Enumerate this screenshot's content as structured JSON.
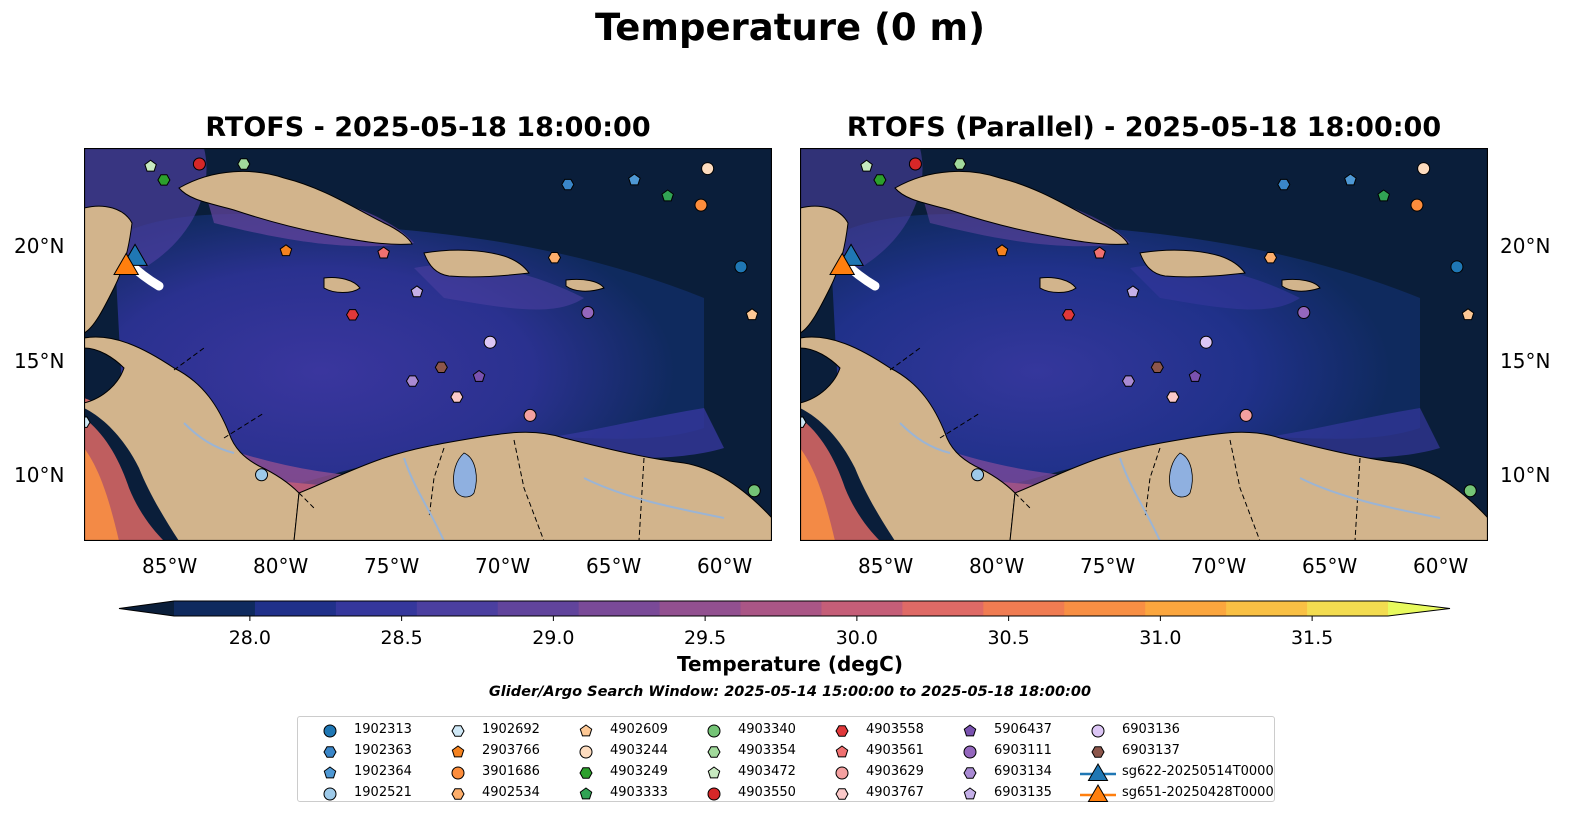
{
  "figure": {
    "suptitle": "Temperature (0 m)",
    "panels": [
      {
        "title": "RTOFS - 2025-05-18 18:00:00"
      },
      {
        "title": "RTOFS (Parallel) - 2025-05-18 18:00:00"
      }
    ],
    "lon_ticks": [
      "85°W",
      "80°W",
      "75°W",
      "70°W",
      "65°W",
      "60°W"
    ],
    "lat_ticks": [
      "20°N",
      "15°N",
      "10°N"
    ],
    "map_extent": {
      "lon": [
        -89,
        -58
      ],
      "lat": [
        7,
        24.2
      ]
    },
    "colorbar": {
      "label": "Temperature (degC)",
      "ticks": [
        "28.0",
        "28.5",
        "29.0",
        "29.5",
        "30.0",
        "30.5",
        "31.0",
        "31.5"
      ],
      "range": [
        27.75,
        31.75
      ],
      "colors": [
        "#0a1e3a",
        "#0f2a5e",
        "#20318a",
        "#35379c",
        "#4b3fa0",
        "#61449c",
        "#7a4a98",
        "#925090",
        "#aa5686",
        "#c55e78",
        "#df6a66",
        "#f07c52",
        "#f88f44",
        "#fba63e",
        "#f9c044",
        "#f3dc50",
        "#e8fa5e"
      ]
    },
    "search_window": "Glider/Argo Search Window: 2025-05-14 15:00:00 to 2025-05-18 18:00:00",
    "legend": [
      {
        "label": "1902313",
        "marker": "circle",
        "color": "#1f77b4"
      },
      {
        "label": "1902363",
        "marker": "hexagon",
        "color": "#3a86c8"
      },
      {
        "label": "1902364",
        "marker": "pentagon",
        "color": "#4e98d4"
      },
      {
        "label": "1902521",
        "marker": "circle",
        "color": "#9ecae9"
      },
      {
        "label": "1902692",
        "marker": "hexagon",
        "color": "#cfe8f6"
      },
      {
        "label": "2903766",
        "marker": "pentagon",
        "color": "#f5821f"
      },
      {
        "label": "3901686",
        "marker": "circle",
        "color": "#fd8d3c"
      },
      {
        "label": "4902534",
        "marker": "hexagon",
        "color": "#fdae6b"
      },
      {
        "label": "4902609",
        "marker": "pentagon",
        "color": "#fdc895"
      },
      {
        "label": "4903244",
        "marker": "circle",
        "color": "#fddcbf"
      },
      {
        "label": "4903249",
        "marker": "hexagon",
        "color": "#2ca02c"
      },
      {
        "label": "4903333",
        "marker": "pentagon",
        "color": "#31a354"
      },
      {
        "label": "4903340",
        "marker": "circle",
        "color": "#74c476"
      },
      {
        "label": "4903354",
        "marker": "hexagon",
        "color": "#a1d99b"
      },
      {
        "label": "4903472",
        "marker": "pentagon",
        "color": "#c7e9c0"
      },
      {
        "label": "4903550",
        "marker": "circle",
        "color": "#d62728"
      },
      {
        "label": "4903558",
        "marker": "hexagon",
        "color": "#e0383a"
      },
      {
        "label": "4903561",
        "marker": "pentagon",
        "color": "#f07070"
      },
      {
        "label": "4903629",
        "marker": "circle",
        "color": "#f4a0a0"
      },
      {
        "label": "4903767",
        "marker": "hexagon",
        "color": "#fbc9c9"
      },
      {
        "label": "5906437",
        "marker": "pentagon",
        "color": "#7a52b0"
      },
      {
        "label": "6903111",
        "marker": "circle",
        "color": "#9467bd"
      },
      {
        "label": "6903134",
        "marker": "hexagon",
        "color": "#a98ad3"
      },
      {
        "label": "6903135",
        "marker": "pentagon",
        "color": "#c5b0e8"
      },
      {
        "label": "6903136",
        "marker": "circle",
        "color": "#dcc6f5"
      },
      {
        "label": "6903137",
        "marker": "hexagon",
        "color": "#8c564b"
      },
      {
        "label": "sg622-20250514T0000",
        "marker": "triangle-line",
        "color": "#1f77b4"
      },
      {
        "label": "sg651-20250428T0000",
        "marker": "triangle-line",
        "color": "#ff7f0e"
      }
    ],
    "floats_on_map": [
      {
        "label": "4903472",
        "lon": -86,
        "lat": 23.4
      },
      {
        "label": "4903550",
        "lon": -83.8,
        "lat": 23.5
      },
      {
        "label": "4903354",
        "lon": -81.8,
        "lat": 23.5
      },
      {
        "label": "4903249",
        "lon": -85.4,
        "lat": 22.8
      },
      {
        "label": "1902363",
        "lon": -67.2,
        "lat": 22.6
      },
      {
        "label": "1902364",
        "lon": -64.2,
        "lat": 22.8
      },
      {
        "label": "4903333",
        "lon": -62.7,
        "lat": 22.1
      },
      {
        "label": "3901686",
        "lon": -61.2,
        "lat": 21.7
      },
      {
        "label": "4903244",
        "lon": -60.9,
        "lat": 23.3
      },
      {
        "label": "2903766",
        "lon": -79.9,
        "lat": 19.7
      },
      {
        "label": "4903561",
        "lon": -75.5,
        "lat": 19.6
      },
      {
        "label": "4902534",
        "lon": -67.8,
        "lat": 19.4
      },
      {
        "label": "1902313",
        "lon": -59.4,
        "lat": 19.0
      },
      {
        "label": "6903135",
        "lon": -74.0,
        "lat": 17.9
      },
      {
        "label": "4903558",
        "lon": -76.9,
        "lat": 16.9
      },
      {
        "label": "6903111",
        "lon": -66.3,
        "lat": 17.0
      },
      {
        "label": "4902609",
        "lon": -58.9,
        "lat": 16.9
      },
      {
        "label": "6903136",
        "lon": -70.7,
        "lat": 15.7
      },
      {
        "label": "6903137",
        "lon": -72.9,
        "lat": 14.6
      },
      {
        "label": "5906437",
        "lon": -71.2,
        "lat": 14.2
      },
      {
        "label": "6903134",
        "lon": -74.2,
        "lat": 14.0
      },
      {
        "label": "4903767",
        "lon": -72.2,
        "lat": 13.3
      },
      {
        "label": "4903629",
        "lon": -68.9,
        "lat": 12.5
      },
      {
        "label": "1902692",
        "lon": -89.0,
        "lat": 12.2
      },
      {
        "label": "1902521",
        "lon": -81.0,
        "lat": 9.9
      },
      {
        "label": "4903340",
        "lon": -58.8,
        "lat": 9.2
      }
    ],
    "gliders_on_map": [
      {
        "label": "sg622-20250514T0000",
        "lon": -86.7,
        "lat": 19.5
      },
      {
        "label": "sg651-20250428T0000",
        "lon": -87.1,
        "lat": 19.1
      }
    ]
  }
}
